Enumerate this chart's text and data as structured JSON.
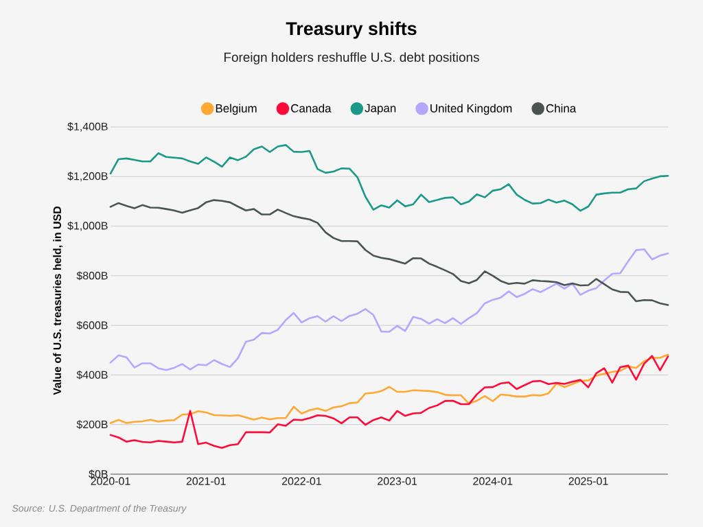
{
  "chart_data": {
    "type": "line",
    "title": "Treasury shifts",
    "subtitle": "Foreign holders reshuffle U.S. debt positions",
    "ylabel": "Value of U.S. treasuries held, in USD",
    "annotations": [
      "Source: U.S. Department of the Treasury"
    ],
    "x": [
      "2020-01",
      "2020-02",
      "2020-03",
      "2020-04",
      "2020-05",
      "2020-06",
      "2020-07",
      "2020-08",
      "2020-09",
      "2020-10",
      "2020-11",
      "2020-12",
      "2021-01",
      "2021-02",
      "2021-03",
      "2021-04",
      "2021-05",
      "2021-06",
      "2021-07",
      "2021-08",
      "2021-09",
      "2021-10",
      "2021-11",
      "2021-12",
      "2022-01",
      "2022-02",
      "2022-03",
      "2022-04",
      "2022-05",
      "2022-06",
      "2022-07",
      "2022-08",
      "2022-09",
      "2022-10",
      "2022-11",
      "2022-12",
      "2023-01",
      "2023-02",
      "2023-03",
      "2023-04",
      "2023-05",
      "2023-06",
      "2023-07",
      "2023-08",
      "2023-09",
      "2023-10",
      "2023-11",
      "2023-12",
      "2024-01",
      "2024-02",
      "2024-03",
      "2024-04",
      "2024-05",
      "2024-06",
      "2024-07",
      "2024-08",
      "2024-09",
      "2024-10",
      "2024-11",
      "2024-12",
      "2025-01",
      "2025-02",
      "2025-03",
      "2025-04",
      "2025-05",
      "2025-06",
      "2025-07",
      "2025-08",
      "2025-09",
      "2025-10",
      "2025-11"
    ],
    "series": [
      {
        "name": "Belgium",
        "color": "#ffa833",
        "values": [
          206,
          219,
          206,
          211,
          213,
          219,
          212,
          216,
          218,
          240,
          242,
          254,
          249,
          238,
          237,
          235,
          238,
          229,
          220,
          228,
          221,
          226,
          226,
          272,
          244,
          258,
          265,
          255,
          269,
          274,
          286,
          289,
          325,
          328,
          335,
          352,
          332,
          332,
          338,
          337,
          335,
          331,
          320,
          318,
          318,
          285,
          296,
          315,
          294,
          321,
          318,
          313,
          313,
          319,
          317,
          326,
          365,
          351,
          363,
          376,
          378,
          397,
          405,
          412,
          416,
          434,
          428,
          455,
          469,
          469,
          482
        ]
      },
      {
        "name": "Canada",
        "color": "#ff0a38",
        "values": [
          158,
          148,
          131,
          137,
          130,
          128,
          134,
          131,
          128,
          131,
          255,
          121,
          127,
          114,
          106,
          117,
          121,
          169,
          169,
          169,
          168,
          201,
          195,
          220,
          218,
          226,
          237,
          235,
          225,
          205,
          229,
          229,
          199,
          218,
          229,
          216,
          255,
          235,
          245,
          247,
          267,
          277,
          295,
          296,
          282,
          282,
          322,
          350,
          351,
          366,
          370,
          343,
          359,
          374,
          376,
          363,
          368,
          364,
          373,
          380,
          350,
          407,
          427,
          369,
          431,
          438,
          381,
          445,
          477,
          419,
          475
        ]
      },
      {
        "name": "Japan",
        "color": "#1a998a",
        "values": [
          1212,
          1270,
          1273,
          1267,
          1261,
          1261,
          1294,
          1279,
          1276,
          1273,
          1261,
          1251,
          1277,
          1260,
          1240,
          1277,
          1266,
          1280,
          1310,
          1321,
          1299,
          1321,
          1327,
          1300,
          1299,
          1303,
          1230,
          1215,
          1220,
          1233,
          1232,
          1197,
          1119,
          1066,
          1084,
          1075,
          1104,
          1080,
          1088,
          1127,
          1097,
          1105,
          1114,
          1116,
          1088,
          1099,
          1128,
          1116,
          1143,
          1149,
          1169,
          1127,
          1106,
          1091,
          1093,
          1107,
          1095,
          1103,
          1088,
          1062,
          1079,
          1127,
          1132,
          1135,
          1135,
          1149,
          1152,
          1181,
          1192,
          1201,
          1203
        ]
      },
      {
        "name": "United Kingdom",
        "color": "#b4a7ff",
        "values": [
          450,
          479,
          471,
          430,
          447,
          447,
          427,
          420,
          429,
          444,
          422,
          442,
          439,
          460,
          444,
          432,
          468,
          534,
          542,
          569,
          567,
          582,
          621,
          650,
          612,
          629,
          637,
          615,
          637,
          617,
          638,
          647,
          666,
          642,
          575,
          574,
          598,
          577,
          634,
          626,
          607,
          625,
          609,
          629,
          606,
          629,
          649,
          689,
          703,
          712,
          737,
          714,
          727,
          746,
          734,
          751,
          768,
          748,
          768,
          723,
          740,
          750,
          781,
          808,
          810,
          858,
          903,
          907,
          866,
          881,
          890
        ]
      },
      {
        "name": "China",
        "color": "#4a5553",
        "values": [
          1078,
          1093,
          1082,
          1072,
          1085,
          1075,
          1074,
          1069,
          1063,
          1054,
          1064,
          1073,
          1096,
          1105,
          1102,
          1096,
          1079,
          1063,
          1069,
          1047,
          1047,
          1067,
          1053,
          1040,
          1033,
          1027,
          1013,
          975,
          952,
          940,
          940,
          939,
          904,
          881,
          872,
          867,
          858,
          849,
          871,
          870,
          849,
          836,
          822,
          807,
          779,
          770,
          783,
          818,
          800,
          779,
          767,
          771,
          768,
          782,
          779,
          777,
          774,
          762,
          769,
          761,
          762,
          787,
          766,
          745,
          735,
          734,
          697,
          702,
          701,
          689,
          682
        ]
      }
    ],
    "xlim": [
      "2020-01",
      "2025-11"
    ],
    "xticks": [
      "2020-01",
      "2021-01",
      "2022-01",
      "2023-01",
      "2024-01",
      "2025-01"
    ],
    "ylim": [
      0,
      1400
    ],
    "yticks": [
      {
        "value": 0,
        "label": "$0B"
      },
      {
        "value": 200,
        "label": "$200B"
      },
      {
        "value": 400,
        "label": "$400B"
      },
      {
        "value": 600,
        "label": "$600B"
      },
      {
        "value": 800,
        "label": "$800B"
      },
      {
        "value": 1000,
        "label": "$1,000B"
      },
      {
        "value": 1200,
        "label": "$1,200B"
      },
      {
        "value": 1400,
        "label": "$1,400B"
      }
    ],
    "grid": "y",
    "legend": "top",
    "line_style": "solid"
  }
}
